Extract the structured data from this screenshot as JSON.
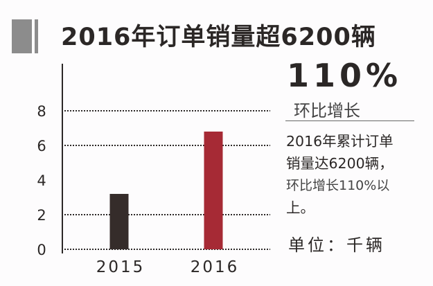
{
  "title": "2016年订单销量超6200辆",
  "highlight": {
    "value": "110%",
    "label": "环比增长"
  },
  "description": [
    "2016年累计订单",
    "销量达6200辆，",
    "环比增长110%以",
    "上。"
  ],
  "unit": "单位：千辆",
  "colors": {
    "bar_2015": "#352c2a",
    "bar_2016": "#a62a35",
    "title_marker": "#8c8c8c"
  },
  "chart_data": {
    "type": "bar",
    "categories": [
      "2015",
      "2016"
    ],
    "values": [
      3.2,
      6.8
    ],
    "yticks": [
      0,
      2,
      4,
      6,
      8
    ],
    "gridlines_at": [
      0,
      2,
      6,
      8
    ],
    "grid_style": "dotted",
    "ylim": [
      0,
      9.5
    ],
    "xlabel": "",
    "ylabel": ""
  }
}
